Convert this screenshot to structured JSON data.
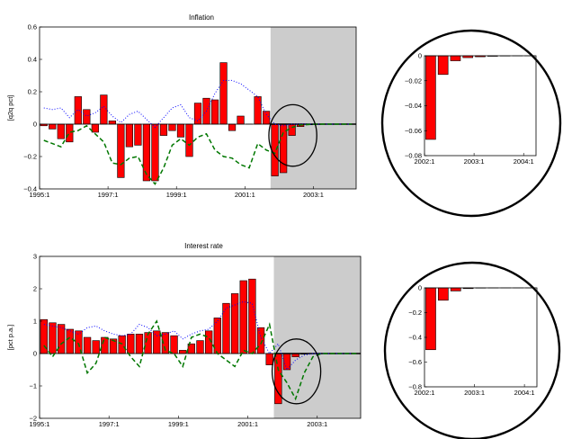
{
  "chart_data": [
    {
      "type": "bar",
      "title": "Inflation",
      "ylabel": "[q2q pct]",
      "ylim": [
        -0.4,
        0.6
      ],
      "yticks": [
        -0.4,
        -0.2,
        0,
        0.2,
        0.4,
        0.6
      ],
      "ytick_labels": [
        "−0.4",
        "−0.2",
        "0",
        "0.2",
        "0.4",
        "0.6"
      ],
      "x_start": 1995.0,
      "x_end": 2004.25,
      "xticks": [
        1995,
        1997,
        1999,
        2001,
        2003
      ],
      "xtick_labels": [
        "1995:1",
        "1997:1",
        "1999:1",
        "2001:1",
        "2003:1"
      ],
      "shaded_region": [
        2001.75,
        2004.25
      ],
      "shade_color": "#cccccc",
      "highlight_ellipse": {
        "x_center": 2002.4,
        "y_center": -0.07,
        "x_radius": 0.7,
        "y_radius": 0.19
      },
      "bar_color": "#ff0000",
      "series": [
        {
          "name": "",
          "style": "bars",
          "values": [
            -0.01,
            -0.03,
            -0.09,
            -0.11,
            0.17,
            0.09,
            -0.05,
            0.18,
            0.02,
            -0.33,
            -0.14,
            -0.13,
            -0.35,
            -0.35,
            -0.07,
            -0.04,
            -0.08,
            -0.2,
            0.13,
            0.16,
            0.15,
            0.38,
            -0.04,
            0.05,
            0.0,
            0.17,
            0.08,
            -0.32,
            -0.3,
            -0.07,
            -0.015,
            -0.004,
            -0.002,
            -0.001,
            0,
            0,
            0
          ]
        },
        {
          "name": "",
          "style": "dotted",
          "color": "#0000ff",
          "values": [
            0.1,
            0.09,
            0.1,
            0.04,
            0.09,
            0.05,
            0.07,
            0.11,
            0.05,
            0.01,
            0.06,
            0.08,
            0.03,
            -0.02,
            0.04,
            0.1,
            0.12,
            0.04,
            0.02,
            0.08,
            0.19,
            0.27,
            0.27,
            0.25,
            0.21,
            0.17,
            0.06,
            0.0,
            -0.01,
            0,
            0,
            0,
            0,
            0,
            0,
            0,
            0
          ]
        },
        {
          "name": "",
          "style": "dashed",
          "color": "#007700",
          "values": [
            -0.1,
            -0.12,
            -0.14,
            -0.05,
            -0.04,
            -0.01,
            -0.06,
            -0.11,
            -0.24,
            -0.25,
            -0.21,
            -0.2,
            -0.31,
            -0.37,
            -0.27,
            -0.13,
            -0.09,
            -0.13,
            -0.08,
            -0.06,
            -0.16,
            -0.2,
            -0.21,
            -0.25,
            -0.27,
            -0.12,
            -0.16,
            -0.18,
            -0.05,
            -0.02,
            -0.005,
            -0.002,
            0,
            0,
            0,
            0,
            0
          ]
        }
      ]
    },
    {
      "type": "bar",
      "title": "Interest rate",
      "ylabel": "[pct p.a.]",
      "ylim": [
        -2,
        3
      ],
      "yticks": [
        -2,
        -1,
        0,
        1,
        2,
        3
      ],
      "ytick_labels": [
        "−2",
        "−1",
        "0",
        "1",
        "2",
        "3"
      ],
      "x_start": 1995.0,
      "x_end": 2004.25,
      "xticks": [
        1995,
        1997,
        1999,
        2001,
        2003
      ],
      "xtick_labels": [
        "1995:1",
        "1997:1",
        "1999:1",
        "2001:1",
        "2003:1"
      ],
      "shaded_region": [
        2001.75,
        2004.25
      ],
      "shade_color": "#cccccc",
      "highlight_ellipse": {
        "x_center": 2002.4,
        "y_center": -0.55,
        "x_radius": 0.7,
        "y_radius": 1.0
      },
      "bar_color": "#ff0000",
      "series": [
        {
          "name": "",
          "style": "bars",
          "values": [
            1.05,
            0.95,
            0.9,
            0.75,
            0.7,
            0.5,
            0.4,
            0.5,
            0.45,
            0.55,
            0.6,
            0.6,
            0.65,
            0.7,
            0.65,
            0.55,
            0.1,
            0.3,
            0.4,
            0.7,
            1.1,
            1.55,
            1.85,
            2.25,
            2.3,
            0.8,
            -0.35,
            -1.55,
            -0.5,
            -0.1,
            -0.02,
            0,
            0,
            0,
            0,
            0,
            0
          ]
        },
        {
          "name": "",
          "style": "dotted",
          "color": "#0000ff",
          "values": [
            0.9,
            0.85,
            0.8,
            0.7,
            0.6,
            0.8,
            0.85,
            0.7,
            0.6,
            0.55,
            0.6,
            0.9,
            0.8,
            0.55,
            0.6,
            0.7,
            0.45,
            0.6,
            0.7,
            0.75,
            1.0,
            1.4,
            1.5,
            1.6,
            1.55,
            0.5,
            0.0,
            0.3,
            -0.5,
            -0.2,
            -0.05,
            0,
            0,
            0,
            0,
            0,
            0
          ]
        },
        {
          "name": "",
          "style": "dashed",
          "color": "#007700",
          "values": [
            0.25,
            -0.1,
            0.3,
            0.5,
            0.3,
            -0.6,
            -0.3,
            0.5,
            0.4,
            0.3,
            -0.1,
            -0.4,
            0.6,
            1.0,
            0.1,
            0.0,
            -0.4,
            0.5,
            0.6,
            0.5,
            0.0,
            -0.2,
            -0.4,
            0.1,
            0.0,
            0.3,
            0.9,
            -0.5,
            -0.9,
            -1.4,
            -0.6,
            -0.1,
            0,
            0,
            0,
            0,
            0
          ]
        }
      ]
    },
    {
      "type": "bar",
      "title": "",
      "inset_of": "Inflation",
      "ylim": [
        -0.08,
        0
      ],
      "yticks": [
        -0.08,
        -0.06,
        -0.04,
        -0.02,
        0
      ],
      "ytick_labels": [
        "−0.08",
        "−0.06",
        "−0.04",
        "−0.02",
        "0"
      ],
      "x_start": 2002.0,
      "x_end": 2004.25,
      "xticks": [
        2002,
        2003,
        2004
      ],
      "xtick_labels": [
        "2002:1",
        "2003:1",
        "2004:1"
      ],
      "bar_color": "#ff0000",
      "values": [
        -0.067,
        -0.015,
        -0.004,
        -0.0015,
        -0.0008,
        -0.0004,
        -0.0002,
        -0.0001,
        0
      ]
    },
    {
      "type": "bar",
      "title": "",
      "inset_of": "Interest rate",
      "ylim": [
        -0.8,
        0
      ],
      "yticks": [
        -0.8,
        -0.6,
        -0.4,
        -0.2,
        0
      ],
      "ytick_labels": [
        "−0.8",
        "−0.6",
        "−0.4",
        "−0.2",
        "0"
      ],
      "x_start": 2002.0,
      "x_end": 2004.25,
      "xticks": [
        2002,
        2003,
        2004
      ],
      "xtick_labels": [
        "2002:1",
        "2003:1",
        "2004:1"
      ],
      "bar_color": "#ff0000",
      "values": [
        -0.5,
        -0.1,
        -0.025,
        -0.006,
        -0.002,
        -0.001,
        0,
        0,
        0
      ]
    }
  ]
}
